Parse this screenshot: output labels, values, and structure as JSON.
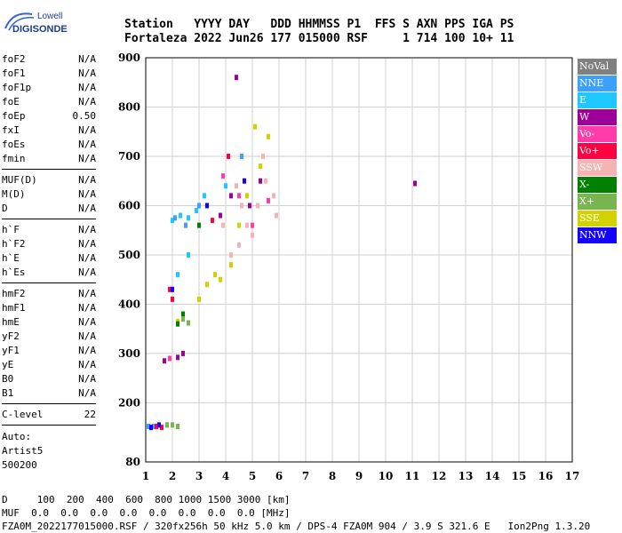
{
  "logo": {
    "line1": "Lowell",
    "line2": "DIGISONDE"
  },
  "header": {
    "labels": [
      "Station",
      "YYYY",
      "DAY",
      "DDD",
      "HHMMSS",
      "P1",
      "FFS",
      "S",
      "AXN",
      "PPS",
      "IGA",
      "PS"
    ],
    "values": [
      "Fortaleza",
      "2022",
      "Jun26",
      "177",
      "015000",
      "RSF",
      "",
      "1",
      "714",
      "100",
      "10+",
      "11"
    ]
  },
  "params": {
    "group1": [
      {
        "name": "foF2",
        "value": "N/A"
      },
      {
        "name": "foF1",
        "value": "N/A"
      },
      {
        "name": "foF1p",
        "value": "N/A"
      },
      {
        "name": "foE",
        "value": "N/A"
      },
      {
        "name": "foEp",
        "value": "0.50"
      },
      {
        "name": "fxI",
        "value": "N/A"
      },
      {
        "name": "foEs",
        "value": "N/A"
      },
      {
        "name": "fmin",
        "value": "N/A"
      }
    ],
    "group2": [
      {
        "name": "MUF(D)",
        "value": "N/A"
      },
      {
        "name": "M(D)",
        "value": "N/A"
      },
      {
        "name": "D",
        "value": "N/A"
      }
    ],
    "group3": [
      {
        "name": "h`F",
        "value": "N/A"
      },
      {
        "name": "h`F2",
        "value": "N/A"
      },
      {
        "name": "h`E",
        "value": "N/A"
      },
      {
        "name": "h`Es",
        "value": "N/A"
      }
    ],
    "group4": [
      {
        "name": "hmF2",
        "value": "N/A"
      },
      {
        "name": "hmF1",
        "value": "N/A"
      },
      {
        "name": "hmE",
        "value": "N/A"
      },
      {
        "name": "yF2",
        "value": "N/A"
      },
      {
        "name": "yF1",
        "value": "N/A"
      },
      {
        "name": "yE",
        "value": "N/A"
      },
      {
        "name": "B0",
        "value": "N/A"
      },
      {
        "name": "B1",
        "value": "N/A"
      }
    ],
    "clevel": {
      "name": "C-level",
      "value": "22"
    }
  },
  "auto": {
    "line1": "Auto:",
    "line2": "Artist5",
    "line3": "500200"
  },
  "bottom": {
    "d_row": "D     100  200  400  600  800 1000 1500 3000 [km]",
    "muf_row": "MUF  0.0  0.0  0.0  0.0  0.0  0.0  0.0  0.0 [MHz]",
    "footer": "FZA0M_2022177015000.RSF / 320fx256h 50 kHz 5.0 km / DPS-4 FZA0M 904 / 3.9 S 321.6 E   Ion2Png 1.3.20"
  },
  "legend": [
    {
      "label": "NoVal",
      "color": "#808080"
    },
    {
      "label": "NNE",
      "color": "#3ca0ff"
    },
    {
      "label": "E",
      "color": "#1ec8ff"
    },
    {
      "label": "W",
      "color": "#a0009a"
    },
    {
      "label": "Vo-",
      "color": "#ff3caa"
    },
    {
      "label": "Vo+",
      "color": "#ff0040"
    },
    {
      "label": "SSW",
      "color": "#f5b4b4"
    },
    {
      "label": "X-",
      "color": "#008000"
    },
    {
      "label": "X+",
      "color": "#78b450"
    },
    {
      "label": "SSE",
      "color": "#d2d200"
    },
    {
      "label": "NNW",
      "color": "#1400ff"
    }
  ],
  "chart_data": {
    "type": "scatter",
    "title": "",
    "xlabel": "",
    "ylabel": "",
    "xlim": [
      1,
      17
    ],
    "ylim": [
      80,
      900
    ],
    "x_ticks": [
      1,
      2,
      3,
      4,
      5,
      6,
      7,
      8,
      9,
      10,
      11,
      12,
      13,
      14,
      15,
      16,
      17
    ],
    "y_ticks": [
      80,
      200,
      300,
      400,
      500,
      600,
      700,
      800,
      900
    ],
    "grid": true,
    "legend_position": "right",
    "series": [
      {
        "name": "SSW",
        "points": [
          [
            4.8,
            560
          ],
          [
            5.2,
            600
          ],
          [
            5.5,
            650
          ],
          [
            4.5,
            520
          ],
          [
            5.8,
            620
          ],
          [
            4.2,
            500
          ],
          [
            5.0,
            540
          ],
          [
            4.6,
            600
          ],
          [
            5.4,
            700
          ],
          [
            5.9,
            580
          ],
          [
            3.9,
            560
          ],
          [
            4.4,
            640
          ]
        ]
      },
      {
        "name": "SSE",
        "points": [
          [
            3.3,
            440
          ],
          [
            3.6,
            460
          ],
          [
            3.0,
            410
          ],
          [
            4.2,
            480
          ],
          [
            4.8,
            620
          ],
          [
            5.3,
            680
          ],
          [
            5.6,
            740
          ],
          [
            4.5,
            560
          ],
          [
            2.4,
            370
          ],
          [
            2.2,
            365
          ],
          [
            5.1,
            760
          ],
          [
            3.8,
            450
          ]
        ]
      },
      {
        "name": "E",
        "points": [
          [
            2.0,
            570
          ],
          [
            2.3,
            580
          ],
          [
            2.6,
            575
          ],
          [
            3.2,
            620
          ],
          [
            2.9,
            590
          ],
          [
            4.0,
            640
          ],
          [
            2.2,
            460
          ],
          [
            2.6,
            500
          ]
        ]
      },
      {
        "name": "NNE",
        "points": [
          [
            2.1,
            575
          ],
          [
            2.5,
            560
          ],
          [
            3.0,
            600
          ],
          [
            4.6,
            700
          ],
          [
            1.1,
            152
          ],
          [
            1.3,
            152
          ]
        ]
      },
      {
        "name": "W",
        "points": [
          [
            4.2,
            620
          ],
          [
            4.9,
            600
          ],
          [
            3.8,
            580
          ],
          [
            5.3,
            650
          ],
          [
            1.7,
            285
          ],
          [
            2.2,
            292
          ],
          [
            2.4,
            300
          ],
          [
            4.4,
            860
          ],
          [
            11.1,
            645
          ]
        ]
      },
      {
        "name": "Vo-",
        "points": [
          [
            4.5,
            620
          ],
          [
            5.0,
            560
          ],
          [
            3.9,
            660
          ],
          [
            1.9,
            290
          ],
          [
            5.6,
            610
          ]
        ]
      },
      {
        "name": "Vo+",
        "points": [
          [
            1.4,
            152
          ],
          [
            1.6,
            150
          ],
          [
            1.8,
            155
          ],
          [
            1.9,
            430
          ],
          [
            2.0,
            410
          ],
          [
            3.5,
            570
          ],
          [
            4.1,
            700
          ]
        ]
      },
      {
        "name": "X-",
        "points": [
          [
            2.2,
            360
          ],
          [
            2.4,
            380
          ],
          [
            3.0,
            560
          ]
        ]
      },
      {
        "name": "X+",
        "points": [
          [
            1.8,
            155
          ],
          [
            2.0,
            155
          ],
          [
            2.2,
            152
          ],
          [
            2.4,
            370
          ],
          [
            2.6,
            362
          ]
        ]
      },
      {
        "name": "NNW",
        "points": [
          [
            1.2,
            150
          ],
          [
            1.5,
            155
          ],
          [
            2.0,
            430
          ],
          [
            3.3,
            600
          ],
          [
            4.7,
            650
          ]
        ]
      }
    ]
  }
}
